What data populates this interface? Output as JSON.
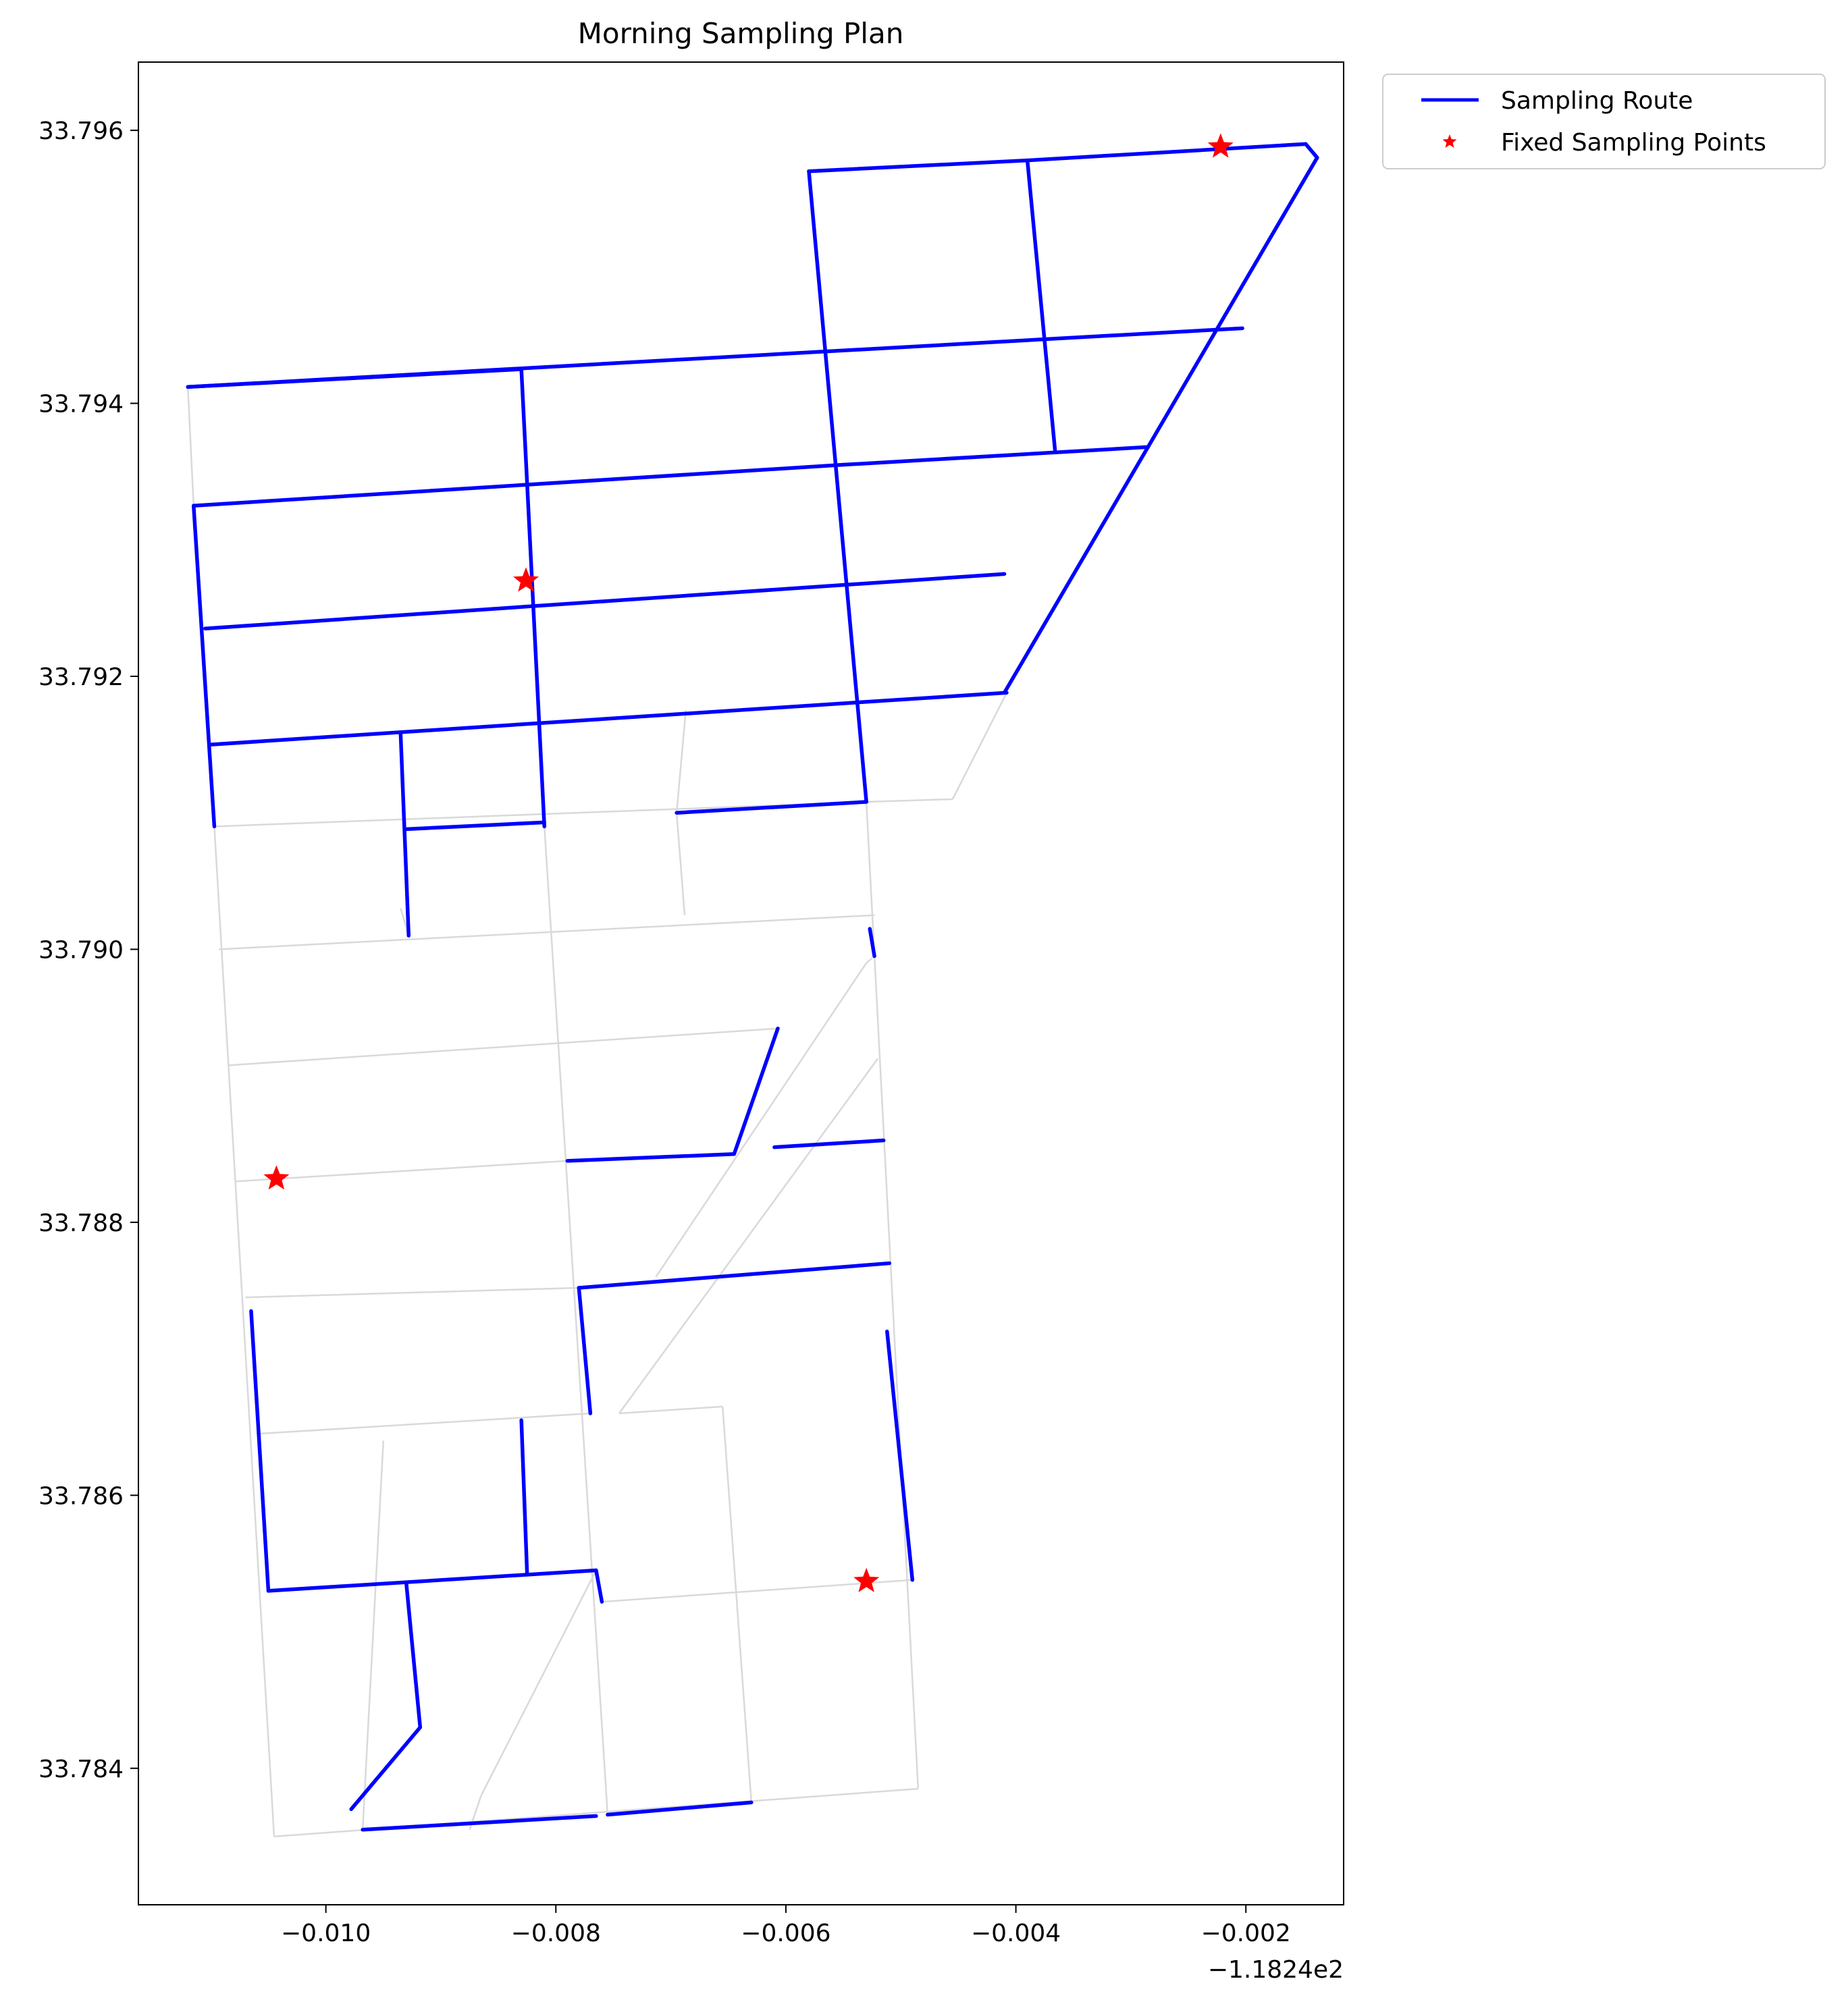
{
  "chart_data": {
    "type": "line",
    "title": "Morning Sampling Plan",
    "xlabel": "",
    "ylabel": "",
    "x_offset_label": "−1.1824e2",
    "xlim": [
      -0.01163,
      -0.00115
    ],
    "ylim": [
      33.783,
      33.7965
    ],
    "x_ticks": [
      -0.01,
      -0.008,
      -0.006,
      -0.004,
      -0.002
    ],
    "x_tick_labels": [
      "−0.010",
      "−0.008",
      "−0.006",
      "−0.004",
      "−0.002"
    ],
    "y_ticks": [
      33.784,
      33.786,
      33.788,
      33.79,
      33.792,
      33.794,
      33.796
    ],
    "y_tick_labels": [
      "33.784",
      "33.786",
      "33.788",
      "33.790",
      "33.792",
      "33.794",
      "33.796"
    ],
    "grid": false,
    "legend_position": "outside-top-right",
    "colors": {
      "route": "#0000ff",
      "points": "#ff0000",
      "network": "#d9d9d9"
    },
    "series": [
      {
        "name": "Sampling Route",
        "type": "line",
        "segments": [
          [
            [
              -0.0112,
              33.79412
            ],
            [
              -0.0083,
              33.79425
            ]
          ],
          [
            [
              -0.0083,
              33.79425
            ],
            [
              -0.0081,
              33.7909
            ]
          ],
          [
            [
              -0.01115,
              33.79325
            ],
            [
              -0.0055,
              33.79355
            ]
          ],
          [
            [
              -0.0055,
              33.79355
            ],
            [
              -0.00285,
              33.79368
            ]
          ],
          [
            [
              -0.01105,
              33.79235
            ],
            [
              -0.0041,
              33.79275
            ]
          ],
          [
            [
              -0.011,
              33.7915
            ],
            [
              -0.00408,
              33.79188
            ]
          ],
          [
            [
              -0.01115,
              33.79325
            ],
            [
              -0.01097,
              33.7909
            ]
          ],
          [
            [
              -0.00935,
              33.79158
            ],
            [
              -0.00928,
              33.7901
            ]
          ],
          [
            [
              -0.00931,
              33.79088
            ],
            [
              -0.0081,
              33.79093
            ]
          ],
          [
            [
              -0.00695,
              33.791
            ],
            [
              -0.0053,
              33.79108
            ]
          ],
          [
            [
              -0.0058,
              33.7957
            ],
            [
              -0.0053,
              33.79108
            ]
          ],
          [
            [
              -0.0058,
              33.7957
            ],
            [
              -0.0039,
              33.79578
            ]
          ],
          [
            [
              -0.0039,
              33.79578
            ],
            [
              -0.00148,
              33.7959
            ]
          ],
          [
            [
              -0.00148,
              33.7959
            ],
            [
              -0.00138,
              33.7958
            ]
          ],
          [
            [
              -0.00138,
              33.7958
            ],
            [
              -0.0041,
              33.79188
            ]
          ],
          [
            [
              -0.0112,
              33.79412
            ],
            [
              -0.00203,
              33.79455
            ]
          ],
          [
            [
              -0.0039,
              33.79578
            ],
            [
              -0.00366,
              33.79366
            ]
          ],
          [
            [
              -0.00527,
              33.79015
            ],
            [
              -0.00523,
              33.78995
            ]
          ],
          [
            [
              -0.00607,
              33.78942
            ],
            [
              -0.00645,
              33.7885
            ]
          ],
          [
            [
              -0.00645,
              33.7885
            ],
            [
              -0.0079,
              33.78845
            ]
          ],
          [
            [
              -0.0061,
              33.78855
            ],
            [
              -0.00515,
              33.7886
            ]
          ],
          [
            [
              -0.0078,
              33.78752
            ],
            [
              -0.0051,
              33.7877
            ]
          ],
          [
            [
              -0.0078,
              33.78752
            ],
            [
              -0.0077,
              33.7866
            ]
          ],
          [
            [
              -0.01065,
              33.78735
            ],
            [
              -0.0105,
              33.7853
            ]
          ],
          [
            [
              -0.0105,
              33.7853
            ],
            [
              -0.00765,
              33.78545
            ]
          ],
          [
            [
              -0.00765,
              33.78545
            ],
            [
              -0.0076,
              33.78522
            ]
          ],
          [
            [
              -0.0083,
              33.78655
            ],
            [
              -0.00825,
              33.78542
            ]
          ],
          [
            [
              -0.00512,
              33.7872
            ],
            [
              -0.0049,
              33.78538
            ]
          ],
          [
            [
              -0.0093,
              33.78535
            ],
            [
              -0.00918,
              33.7843
            ]
          ],
          [
            [
              -0.00918,
              33.7843
            ],
            [
              -0.00978,
              33.7837
            ]
          ],
          [
            [
              -0.00968,
              33.78355
            ],
            [
              -0.00765,
              33.78365
            ]
          ],
          [
            [
              -0.00755,
              33.78366
            ],
            [
              -0.0063,
              33.78375
            ]
          ]
        ]
      },
      {
        "name": "Fixed Sampling Points",
        "type": "scatter",
        "points": [
          [
            -0.00222,
            33.79588
          ],
          [
            -0.00826,
            33.7927
          ],
          [
            -0.01043,
            33.78832
          ],
          [
            -0.0053,
            33.78537
          ]
        ]
      }
    ],
    "background_network": [
      [
        [
          -0.0112,
          33.79412
        ],
        [
          -0.01115,
          33.79325
        ]
      ],
      [
        [
          -0.01097,
          33.7909
        ],
        [
          -0.01045,
          33.7835
        ]
      ],
      [
        [
          -0.01045,
          33.7835
        ],
        [
          -0.00485,
          33.78385
        ]
      ],
      [
        [
          -0.00485,
          33.78385
        ],
        [
          -0.0053,
          33.79108
        ]
      ],
      [
        [
          -0.0081,
          33.7909
        ],
        [
          -0.00755,
          33.78366
        ]
      ],
      [
        [
          -0.00695,
          33.791
        ],
        [
          -0.00688,
          33.79025
        ]
      ],
      [
        [
          -0.00687,
          33.79175
        ],
        [
          -0.00695,
          33.791
        ]
      ],
      [
        [
          -0.01097,
          33.7909
        ],
        [
          -0.0053,
          33.79108
        ]
      ],
      [
        [
          -0.0053,
          33.79108
        ],
        [
          -0.00455,
          33.7911
        ]
      ],
      [
        [
          -0.00455,
          33.7911
        ],
        [
          -0.00408,
          33.79188
        ]
      ],
      [
        [
          -0.01093,
          33.79
        ],
        [
          -0.00523,
          33.79025
        ]
      ],
      [
        [
          -0.01085,
          33.78915
        ],
        [
          -0.00607,
          33.78942
        ]
      ],
      [
        [
          -0.01078,
          33.7883
        ],
        [
          -0.0079,
          33.78845
        ]
      ],
      [
        [
          -0.0107,
          33.78745
        ],
        [
          -0.0078,
          33.78752
        ]
      ],
      [
        [
          -0.0106,
          33.78645
        ],
        [
          -0.0077,
          33.7866
        ]
      ],
      [
        [
          -0.00928,
          33.7901
        ],
        [
          -0.00935,
          33.7903
        ]
      ],
      [
        [
          -0.00523,
          33.78995
        ],
        [
          -0.0053,
          33.7899
        ]
      ],
      [
        [
          -0.0053,
          33.7899
        ],
        [
          -0.00713,
          33.7876
        ]
      ],
      [
        [
          -0.0052,
          33.7892
        ],
        [
          -0.00745,
          33.7866
        ]
      ],
      [
        [
          -0.00745,
          33.7866
        ],
        [
          -0.00655,
          33.78665
        ]
      ],
      [
        [
          -0.00655,
          33.78665
        ],
        [
          -0.0063,
          33.78375
        ]
      ],
      [
        [
          -0.0095,
          33.7864
        ],
        [
          -0.00968,
          33.78355
        ]
      ],
      [
        [
          -0.00765,
          33.78545
        ],
        [
          -0.00865,
          33.7838
        ]
      ],
      [
        [
          -0.00865,
          33.7838
        ],
        [
          -0.00875,
          33.78355
        ]
      ],
      [
        [
          -0.0076,
          33.78522
        ],
        [
          -0.0049,
          33.78538
        ]
      ]
    ]
  },
  "legend": {
    "items": [
      {
        "label": "Sampling Route",
        "type": "line"
      },
      {
        "label": "Fixed Sampling Points",
        "type": "marker"
      }
    ]
  }
}
